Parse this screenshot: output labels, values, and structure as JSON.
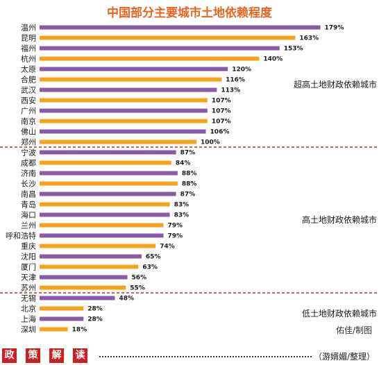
{
  "title": "中国部分主要城市土地依赖程度",
  "credit": "佑佳/制图",
  "footer": {
    "badges": [
      "政",
      "策",
      "解",
      "读"
    ],
    "editor": "（游婿媚/整理）"
  },
  "colors": {
    "accent": "#e8651f",
    "bar_purple": "#8a5aa8",
    "bar_orange": "#f5a41c",
    "separator": "#cc2a2a",
    "badge_red": "#cc1f1f"
  },
  "chart_data": {
    "type": "bar",
    "orientation": "horizontal",
    "categories": [
      "温州",
      "昆明",
      "福州",
      "杭州",
      "太原",
      "合肥",
      "武汉",
      "西安",
      "广州",
      "南京",
      "佛山",
      "郑州",
      "宁波",
      "成都",
      "济南",
      "长沙",
      "南昌",
      "青岛",
      "海口",
      "兰州",
      "呼和浩特",
      "重庆",
      "沈阳",
      "厦门",
      "天津",
      "苏州",
      "无锡",
      "北京",
      "上海",
      "深圳"
    ],
    "values": [
      179,
      163,
      153,
      140,
      120,
      116,
      113,
      107,
      107,
      107,
      106,
      100,
      87,
      84,
      88,
      88,
      87,
      83,
      83,
      79,
      79,
      74,
      65,
      63,
      56,
      55,
      48,
      28,
      28,
      18
    ],
    "value_labels": [
      "179%",
      "163%",
      "153%",
      "140%",
      "120%",
      "116%",
      "113%",
      "107%",
      "107%",
      "107%",
      "106%",
      "100%",
      "87%",
      "84%",
      "88%",
      "88%",
      "87%",
      "83%",
      "83%",
      "79%",
      "79%",
      "74%",
      "65%",
      "63%",
      "56%",
      "55%",
      "48%",
      "28%",
      "28%",
      "18%"
    ],
    "bar_colors": [
      "purple",
      "orange",
      "purple",
      "orange",
      "purple",
      "orange",
      "purple",
      "orange",
      "purple",
      "orange",
      "purple",
      "orange",
      "purple",
      "orange",
      "purple",
      "orange",
      "purple",
      "orange",
      "purple",
      "orange",
      "purple",
      "orange",
      "purple",
      "orange",
      "purple",
      "orange",
      "purple",
      "orange",
      "purple",
      "orange"
    ],
    "groups": [
      {
        "label": "超高土地财政依赖城市",
        "start": 0,
        "end": 11
      },
      {
        "label": "高土地财政依赖城市",
        "start": 12,
        "end": 25
      },
      {
        "label": "低土地财政依赖城市",
        "start": 26,
        "end": 29
      }
    ],
    "xlim": [
      0,
      185
    ],
    "grid": false,
    "legend": "none"
  }
}
